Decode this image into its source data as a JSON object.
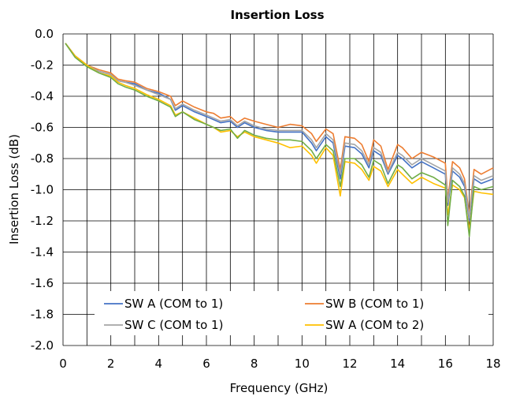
{
  "chart_data": {
    "type": "line",
    "title": "Insertion Loss",
    "xlabel": "Frequency (GHz)",
    "ylabel": "Insertion Loss (dB)",
    "xlim": [
      0,
      18
    ],
    "ylim": [
      -2.0,
      0.0
    ],
    "xticks": [
      "0",
      "2",
      "4",
      "6",
      "8",
      "10",
      "12",
      "14",
      "16",
      "18"
    ],
    "yticks": [
      "0.0",
      "-0.2",
      "-0.4",
      "-0.6",
      "-0.8",
      "-1.0",
      "-1.2",
      "-1.4",
      "-1.6",
      "-1.8",
      "-2.0"
    ],
    "grid": true,
    "legend_position": "bottom",
    "series": [
      {
        "name": "SW A (COM to 1)",
        "color": "#4472c4",
        "points": [
          [
            0.1,
            -0.06
          ],
          [
            0.5,
            -0.14
          ],
          [
            1,
            -0.2
          ],
          [
            1.5,
            -0.24
          ],
          [
            2,
            -0.26
          ],
          [
            2.3,
            -0.3
          ],
          [
            2.6,
            -0.31
          ],
          [
            3,
            -0.32
          ],
          [
            3.5,
            -0.36
          ],
          [
            4,
            -0.38
          ],
          [
            4.5,
            -0.42
          ],
          [
            4.7,
            -0.49
          ],
          [
            5,
            -0.46
          ],
          [
            5.5,
            -0.5
          ],
          [
            6,
            -0.53
          ],
          [
            6.3,
            -0.55
          ],
          [
            6.6,
            -0.57
          ],
          [
            7,
            -0.56
          ],
          [
            7.3,
            -0.6
          ],
          [
            7.6,
            -0.57
          ],
          [
            8,
            -0.6
          ],
          [
            8.5,
            -0.62
          ],
          [
            9,
            -0.63
          ],
          [
            9.5,
            -0.63
          ],
          [
            10,
            -0.63
          ],
          [
            10.4,
            -0.7
          ],
          [
            10.6,
            -0.75
          ],
          [
            11,
            -0.66
          ],
          [
            11.3,
            -0.7
          ],
          [
            11.6,
            -0.93
          ],
          [
            11.8,
            -0.72
          ],
          [
            12.2,
            -0.73
          ],
          [
            12.5,
            -0.77
          ],
          [
            12.8,
            -0.86
          ],
          [
            13,
            -0.75
          ],
          [
            13.3,
            -0.78
          ],
          [
            13.6,
            -0.9
          ],
          [
            14,
            -0.78
          ],
          [
            14.2,
            -0.8
          ],
          [
            14.6,
            -0.86
          ],
          [
            15,
            -0.82
          ],
          [
            15.5,
            -0.86
          ],
          [
            16,
            -0.9
          ],
          [
            16.1,
            -1.1
          ],
          [
            16.3,
            -0.88
          ],
          [
            16.6,
            -0.92
          ],
          [
            16.8,
            -0.98
          ],
          [
            17,
            -1.2
          ],
          [
            17.2,
            -0.93
          ],
          [
            17.5,
            -0.96
          ],
          [
            18,
            -0.93
          ]
        ]
      },
      {
        "name": "SW B (COM to 1)",
        "color": "#ed7d31",
        "points": [
          [
            0.1,
            -0.06
          ],
          [
            0.5,
            -0.14
          ],
          [
            1,
            -0.2
          ],
          [
            1.5,
            -0.23
          ],
          [
            2,
            -0.25
          ],
          [
            2.3,
            -0.29
          ],
          [
            2.6,
            -0.3
          ],
          [
            3,
            -0.31
          ],
          [
            3.5,
            -0.35
          ],
          [
            4,
            -0.37
          ],
          [
            4.5,
            -0.4
          ],
          [
            4.7,
            -0.46
          ],
          [
            5,
            -0.43
          ],
          [
            5.5,
            -0.47
          ],
          [
            6,
            -0.5
          ],
          [
            6.3,
            -0.51
          ],
          [
            6.6,
            -0.54
          ],
          [
            7,
            -0.53
          ],
          [
            7.3,
            -0.57
          ],
          [
            7.6,
            -0.54
          ],
          [
            8,
            -0.56
          ],
          [
            8.5,
            -0.58
          ],
          [
            9,
            -0.6
          ],
          [
            9.5,
            -0.58
          ],
          [
            10,
            -0.59
          ],
          [
            10.4,
            -0.64
          ],
          [
            10.6,
            -0.69
          ],
          [
            11,
            -0.61
          ],
          [
            11.3,
            -0.64
          ],
          [
            11.6,
            -0.87
          ],
          [
            11.8,
            -0.66
          ],
          [
            12.2,
            -0.67
          ],
          [
            12.5,
            -0.71
          ],
          [
            12.8,
            -0.82
          ],
          [
            13,
            -0.68
          ],
          [
            13.3,
            -0.72
          ],
          [
            13.6,
            -0.87
          ],
          [
            14,
            -0.71
          ],
          [
            14.2,
            -0.73
          ],
          [
            14.6,
            -0.8
          ],
          [
            15,
            -0.76
          ],
          [
            15.5,
            -0.79
          ],
          [
            16,
            -0.83
          ],
          [
            16.1,
            -1.06
          ],
          [
            16.3,
            -0.82
          ],
          [
            16.6,
            -0.86
          ],
          [
            16.8,
            -0.93
          ],
          [
            17,
            -1.16
          ],
          [
            17.2,
            -0.87
          ],
          [
            17.5,
            -0.9
          ],
          [
            18,
            -0.86
          ]
        ]
      },
      {
        "name": "SW C (COM to 1)",
        "color": "#a5a5a5",
        "points": [
          [
            0.1,
            -0.06
          ],
          [
            0.5,
            -0.14
          ],
          [
            1,
            -0.2
          ],
          [
            1.5,
            -0.24
          ],
          [
            2,
            -0.26
          ],
          [
            2.3,
            -0.3
          ],
          [
            2.6,
            -0.31
          ],
          [
            3,
            -0.33
          ],
          [
            3.5,
            -0.36
          ],
          [
            4,
            -0.39
          ],
          [
            4.5,
            -0.42
          ],
          [
            4.7,
            -0.48
          ],
          [
            5,
            -0.45
          ],
          [
            5.5,
            -0.49
          ],
          [
            6,
            -0.52
          ],
          [
            6.3,
            -0.54
          ],
          [
            6.6,
            -0.56
          ],
          [
            7,
            -0.55
          ],
          [
            7.3,
            -0.59
          ],
          [
            7.6,
            -0.56
          ],
          [
            8,
            -0.59
          ],
          [
            8.5,
            -0.61
          ],
          [
            9,
            -0.62
          ],
          [
            9.5,
            -0.62
          ],
          [
            10,
            -0.62
          ],
          [
            10.4,
            -0.68
          ],
          [
            10.6,
            -0.73
          ],
          [
            11,
            -0.64
          ],
          [
            11.3,
            -0.68
          ],
          [
            11.6,
            -0.9
          ],
          [
            11.8,
            -0.7
          ],
          [
            12.2,
            -0.71
          ],
          [
            12.5,
            -0.75
          ],
          [
            12.8,
            -0.84
          ],
          [
            13,
            -0.73
          ],
          [
            13.3,
            -0.76
          ],
          [
            13.6,
            -0.89
          ],
          [
            14,
            -0.76
          ],
          [
            14.2,
            -0.78
          ],
          [
            14.6,
            -0.84
          ],
          [
            15,
            -0.8
          ],
          [
            15.5,
            -0.84
          ],
          [
            16,
            -0.88
          ],
          [
            16.1,
            -1.08
          ],
          [
            16.3,
            -0.86
          ],
          [
            16.6,
            -0.9
          ],
          [
            16.8,
            -0.96
          ],
          [
            17,
            -1.18
          ],
          [
            17.2,
            -0.91
          ],
          [
            17.5,
            -0.94
          ],
          [
            18,
            -0.91
          ]
        ]
      },
      {
        "name": "SW A (COM to 2)",
        "color": "#ffc000",
        "points": [
          [
            0.1,
            -0.06
          ],
          [
            0.5,
            -0.14
          ],
          [
            1,
            -0.2
          ],
          [
            1.5,
            -0.25
          ],
          [
            2,
            -0.27
          ],
          [
            2.3,
            -0.31
          ],
          [
            2.6,
            -0.33
          ],
          [
            3,
            -0.35
          ],
          [
            3.5,
            -0.39
          ],
          [
            4,
            -0.42
          ],
          [
            4.5,
            -0.46
          ],
          [
            4.7,
            -0.52
          ],
          [
            5,
            -0.5
          ],
          [
            5.5,
            -0.54
          ],
          [
            6,
            -0.58
          ],
          [
            6.3,
            -0.6
          ],
          [
            6.6,
            -0.63
          ],
          [
            7,
            -0.62
          ],
          [
            7.3,
            -0.66
          ],
          [
            7.6,
            -0.63
          ],
          [
            8,
            -0.66
          ],
          [
            8.5,
            -0.68
          ],
          [
            9,
            -0.7
          ],
          [
            9.5,
            -0.73
          ],
          [
            10,
            -0.72
          ],
          [
            10.4,
            -0.78
          ],
          [
            10.6,
            -0.83
          ],
          [
            11,
            -0.73
          ],
          [
            11.3,
            -0.78
          ],
          [
            11.6,
            -1.04
          ],
          [
            11.8,
            -0.82
          ],
          [
            12.2,
            -0.83
          ],
          [
            12.5,
            -0.87
          ],
          [
            12.8,
            -0.94
          ],
          [
            13,
            -0.85
          ],
          [
            13.3,
            -0.88
          ],
          [
            13.6,
            -0.98
          ],
          [
            14,
            -0.87
          ],
          [
            14.2,
            -0.9
          ],
          [
            14.6,
            -0.96
          ],
          [
            15,
            -0.92
          ],
          [
            15.5,
            -0.96
          ],
          [
            16,
            -0.99
          ],
          [
            16.1,
            -1.16
          ],
          [
            16.3,
            -0.97
          ],
          [
            16.6,
            -1.0
          ],
          [
            16.8,
            -1.05
          ],
          [
            17,
            -1.26
          ],
          [
            17.2,
            -1.01
          ],
          [
            17.5,
            -1.02
          ],
          [
            18,
            -1.03
          ]
        ]
      },
      {
        "name": "",
        "color": "#70ad47",
        "points": [
          [
            0.1,
            -0.06
          ],
          [
            0.5,
            -0.15
          ],
          [
            1,
            -0.21
          ],
          [
            1.5,
            -0.25
          ],
          [
            2,
            -0.28
          ],
          [
            2.3,
            -0.32
          ],
          [
            2.6,
            -0.34
          ],
          [
            3,
            -0.36
          ],
          [
            3.5,
            -0.4
          ],
          [
            4,
            -0.43
          ],
          [
            4.5,
            -0.47
          ],
          [
            4.7,
            -0.53
          ],
          [
            5,
            -0.5
          ],
          [
            5.5,
            -0.55
          ],
          [
            6,
            -0.58
          ],
          [
            6.3,
            -0.6
          ],
          [
            6.6,
            -0.62
          ],
          [
            7,
            -0.61
          ],
          [
            7.3,
            -0.67
          ],
          [
            7.6,
            -0.62
          ],
          [
            8,
            -0.65
          ],
          [
            8.5,
            -0.67
          ],
          [
            9,
            -0.68
          ],
          [
            9.5,
            -0.68
          ],
          [
            10,
            -0.69
          ],
          [
            10.4,
            -0.75
          ],
          [
            10.6,
            -0.8
          ],
          [
            11,
            -0.71
          ],
          [
            11.3,
            -0.75
          ],
          [
            11.6,
            -0.98
          ],
          [
            11.8,
            -0.8
          ],
          [
            12.2,
            -0.8
          ],
          [
            12.5,
            -0.84
          ],
          [
            12.8,
            -0.92
          ],
          [
            13,
            -0.81
          ],
          [
            13.3,
            -0.84
          ],
          [
            13.6,
            -0.96
          ],
          [
            14,
            -0.84
          ],
          [
            14.2,
            -0.86
          ],
          [
            14.6,
            -0.93
          ],
          [
            15,
            -0.89
          ],
          [
            15.5,
            -0.92
          ],
          [
            16,
            -0.97
          ],
          [
            16.1,
            -1.23
          ],
          [
            16.3,
            -0.94
          ],
          [
            16.6,
            -0.98
          ],
          [
            16.8,
            -1.04
          ],
          [
            17,
            -1.3
          ],
          [
            17.2,
            -0.98
          ],
          [
            17.5,
            -1.0
          ],
          [
            18,
            -0.98
          ]
        ]
      }
    ]
  }
}
